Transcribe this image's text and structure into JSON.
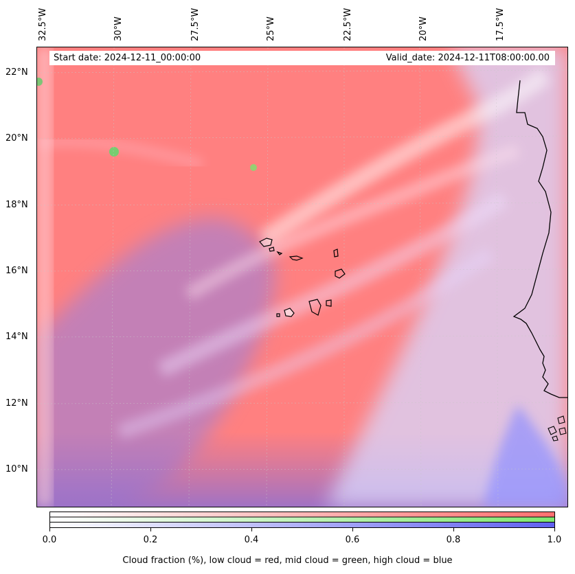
{
  "map": {
    "lon_labels": [
      "32.5°W",
      "30°W",
      "27.5°W",
      "25°W",
      "22.5°W",
      "20°W",
      "17.5°W"
    ],
    "lat_labels": [
      "22°N",
      "20°N",
      "18°N",
      "16°N",
      "14°N",
      "12°N",
      "10°N"
    ],
    "start_date": "Start date: 2024-12-11_00:00:00",
    "valid_date": "Valid_date: 2024-12-11T08:00:00.00",
    "colors": {
      "low_cloud": "#ff8080",
      "mid_cloud": "#80e880",
      "high_cloud": "#8080ff",
      "coast": "#000000"
    }
  },
  "colorbar": {
    "ticks": [
      "0.0",
      "0.2",
      "0.4",
      "0.6",
      "0.8",
      "1.0"
    ],
    "label": "Cloud fraction (%), low cloud = red, mid cloud = green, high cloud = blue"
  }
}
